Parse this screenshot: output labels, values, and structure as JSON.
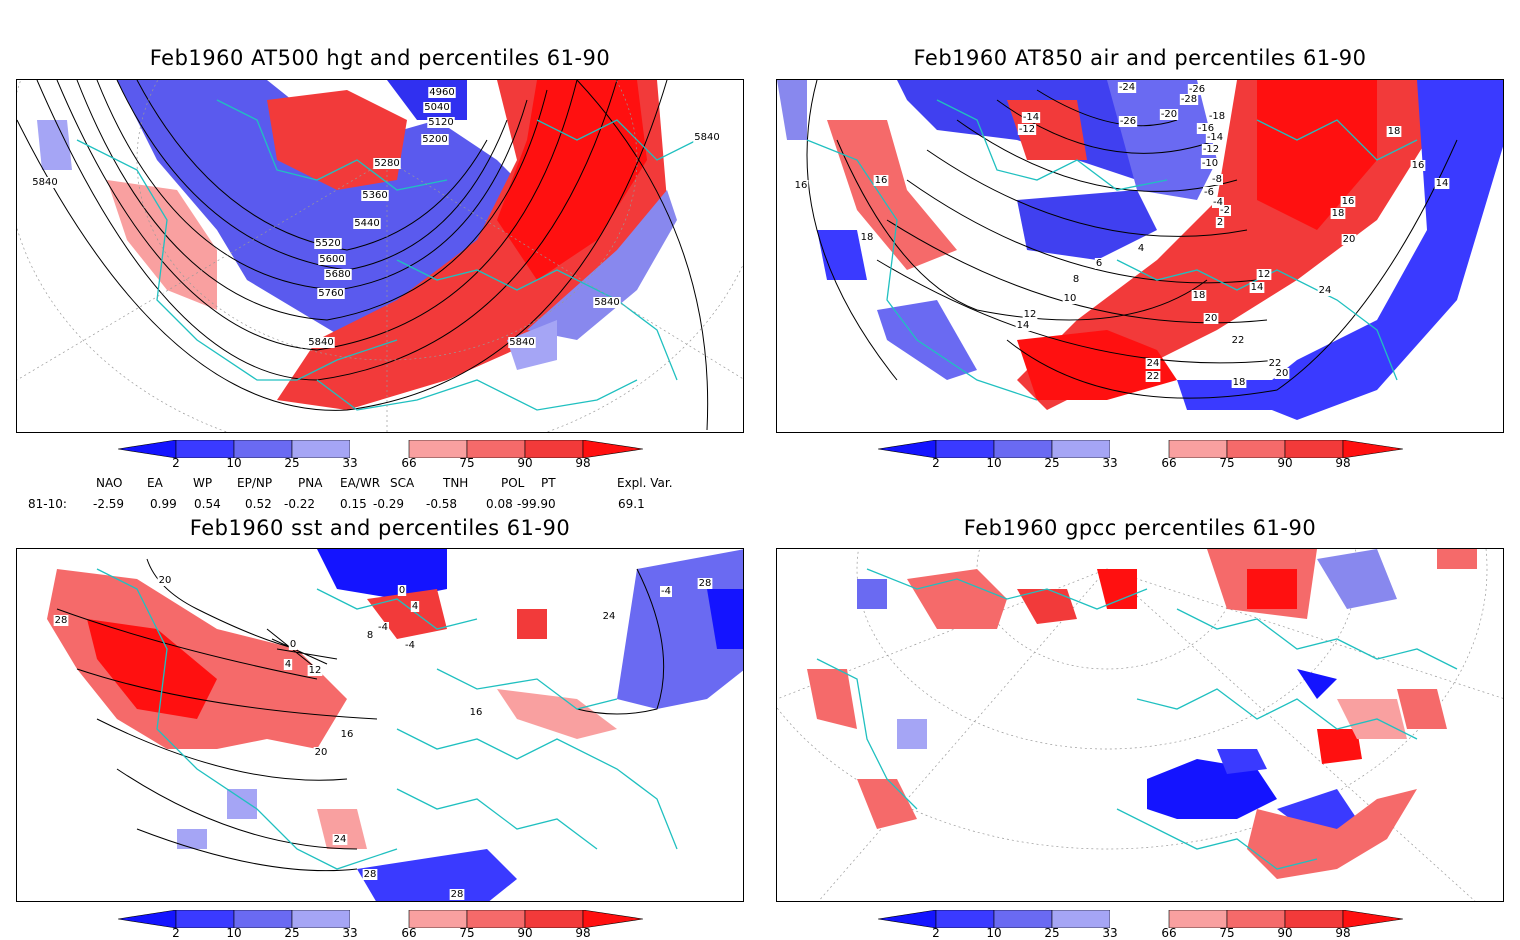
{
  "panels": [
    {
      "title": "Feb1960 AT500 hgt and percentiles 61-90",
      "contours": [
        "4960",
        "5040",
        "5120",
        "5200",
        "5280",
        "5360",
        "5440",
        "5520",
        "5600",
        "5680",
        "5760",
        "5840",
        "5840",
        "5840",
        "5840",
        "5840"
      ]
    },
    {
      "title": "Feb1960 AT850 air and percentiles 61-90",
      "contours": [
        "-24",
        "-26",
        "-28",
        "-14",
        "-12",
        "-26",
        "-20",
        "-18",
        "-16",
        "-14",
        "-12",
        "-10",
        "-8",
        "-6",
        "-4",
        "-2",
        "2",
        "4",
        "6",
        "8",
        "10",
        "12",
        "14",
        "16",
        "16",
        "16",
        "18",
        "18",
        "18",
        "16",
        "14",
        "20",
        "24",
        "12",
        "14",
        "10",
        "18",
        "20",
        "22",
        "22",
        "24",
        "22",
        "20",
        "18"
      ]
    },
    {
      "title": "Feb1960 sst and percentiles 61-90",
      "contours": [
        "20",
        "28",
        "0",
        "4",
        "8",
        "-4",
        "-4",
        "4",
        "0",
        "12",
        "16",
        "16",
        "20",
        "24",
        "28",
        "28",
        "24",
        "28",
        "-4"
      ]
    },
    {
      "title": "Feb1960 gpcc percentiles 61-90",
      "contours": []
    }
  ],
  "colorbar": {
    "labels": [
      "2",
      "10",
      "25",
      "33",
      "66",
      "75",
      "90",
      "98"
    ],
    "colors": [
      "#1414ff",
      "#3a3aff",
      "#6a6af2",
      "#a5a5f5",
      "#ffffff",
      "#f9a0a0",
      "#f56a6a",
      "#f23a3a",
      "#ff1010"
    ]
  },
  "indices": {
    "headers": [
      "NAO",
      "EA",
      "WP",
      "EP/NP",
      "PNA",
      "EA/WR",
      "SCA",
      "TNH",
      "POL",
      "PT",
      "Expl. Var."
    ],
    "row_label": "81-10:",
    "values": [
      "-2.59",
      "0.99",
      "0.54",
      "0.52",
      "-0.22",
      "0.15",
      "-0.29",
      "-0.58",
      "0.08",
      "-99.90",
      "69.1"
    ]
  },
  "colors": {
    "coast": "#20c0c0",
    "contour": "#000000",
    "grid": "#999999"
  }
}
